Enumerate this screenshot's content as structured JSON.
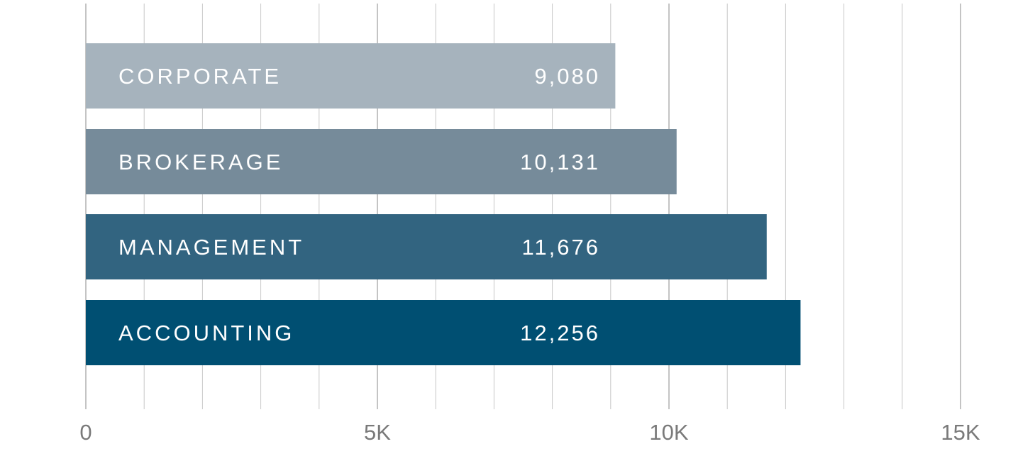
{
  "chart_data": {
    "type": "bar",
    "orientation": "horizontal",
    "categories": [
      "CORPORATE",
      "BROKERAGE",
      "MANAGEMENT",
      "ACCOUNTING"
    ],
    "values": [
      9080,
      10131,
      11676,
      12256
    ],
    "value_labels": [
      "9,080",
      "10,131",
      "11,676",
      "12,256"
    ],
    "colors": [
      "#a6b3bd",
      "#768b9a",
      "#326480",
      "#004f72"
    ],
    "xlim": [
      0,
      15000
    ],
    "x_ticks": [
      {
        "value": 0,
        "label": "0"
      },
      {
        "value": 5000,
        "label": "5K"
      },
      {
        "value": 10000,
        "label": "10K"
      },
      {
        "value": 15000,
        "label": "15K"
      }
    ],
    "minor_grid_step": 1000,
    "grid": true,
    "title": "",
    "xlabel": "",
    "ylabel": ""
  }
}
